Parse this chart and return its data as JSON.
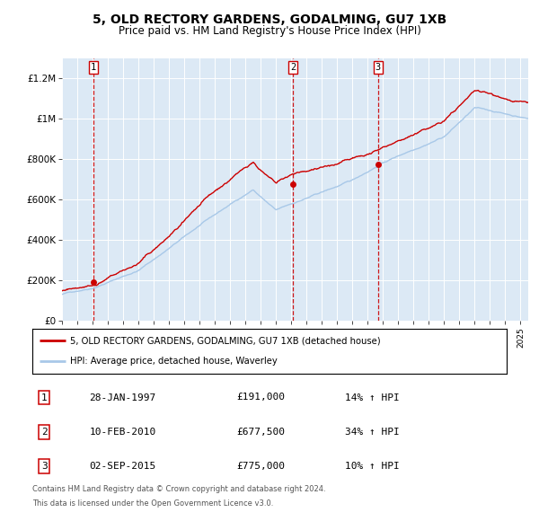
{
  "title": "5, OLD RECTORY GARDENS, GODALMING, GU7 1XB",
  "subtitle": "Price paid vs. HM Land Registry's House Price Index (HPI)",
  "legend_line1": "5, OLD RECTORY GARDENS, GODALMING, GU7 1XB (detached house)",
  "legend_line2": "HPI: Average price, detached house, Waverley",
  "sale_labels": [
    {
      "num": 1,
      "date": "28-JAN-1997",
      "price": 191000,
      "pct": "14%",
      "dir": "↑"
    },
    {
      "num": 2,
      "date": "10-FEB-2010",
      "price": 677500,
      "pct": "34%",
      "dir": "↑"
    },
    {
      "num": 3,
      "date": "02-SEP-2015",
      "price": 775000,
      "pct": "10%",
      "dir": "↑"
    }
  ],
  "sale_dates_decimal": [
    1997.07,
    2010.11,
    2015.67
  ],
  "sale_prices": [
    191000,
    677500,
    775000
  ],
  "footnote1": "Contains HM Land Registry data © Crown copyright and database right 2024.",
  "footnote2": "This data is licensed under the Open Government Licence v3.0.",
  "hpi_color": "#a8c8e8",
  "price_color": "#cc0000",
  "dashed_color": "#cc0000",
  "background_color": "#dce9f5",
  "ylim": [
    0,
    1300000
  ],
  "xlim_start": 1995.0,
  "xlim_end": 2025.5
}
